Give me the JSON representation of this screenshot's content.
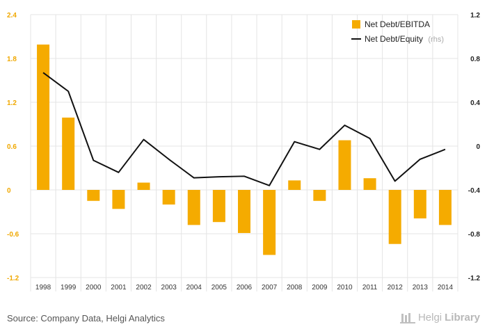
{
  "chart_data": {
    "type": "bar+line",
    "categories": [
      "1998",
      "1999",
      "2000",
      "2001",
      "2002",
      "2003",
      "2004",
      "2005",
      "2006",
      "2007",
      "2008",
      "2009",
      "2010",
      "2011",
      "2012",
      "2013",
      "2014"
    ],
    "series": [
      {
        "name": "Net Debt/EBITDA",
        "type": "bar",
        "axis": "left",
        "values": [
          1.99,
          0.99,
          -0.15,
          -0.26,
          0.1,
          -0.2,
          -0.48,
          -0.44,
          -0.59,
          -0.89,
          0.13,
          -0.15,
          0.68,
          0.16,
          -0.74,
          -0.39,
          -0.48
        ]
      },
      {
        "name": "Net Debt/Equity",
        "note": "(rhs)",
        "type": "line",
        "axis": "right",
        "values": [
          0.67,
          0.5,
          -0.13,
          -0.24,
          0.06,
          -0.12,
          -0.29,
          -0.28,
          -0.275,
          -0.36,
          0.04,
          -0.03,
          0.19,
          0.07,
          -0.32,
          -0.12,
          -0.03
        ]
      }
    ],
    "y_left": {
      "min": -1.2,
      "max": 2.4,
      "ticks": [
        "2.4",
        "1.8",
        "1.2",
        "0.6",
        "0",
        "-0.6",
        "-1.2"
      ]
    },
    "y_right": {
      "min": -1.2,
      "max": 1.2,
      "ticks": [
        "1.2",
        "0.8",
        "0.4",
        "0",
        "-0.4",
        "-0.8",
        "-1.2"
      ]
    },
    "legend_position": "top-right",
    "grid": true,
    "colors": {
      "bar": "#f5ab00",
      "line": "#111111",
      "grid": "#e4e4e4",
      "left_axis": "#f0a800",
      "right_axis": "#222222"
    }
  },
  "footer": {
    "source": "Source: Company Data, Helgi Analytics",
    "brand_light": "Helgi",
    "brand_bold": "Library"
  }
}
